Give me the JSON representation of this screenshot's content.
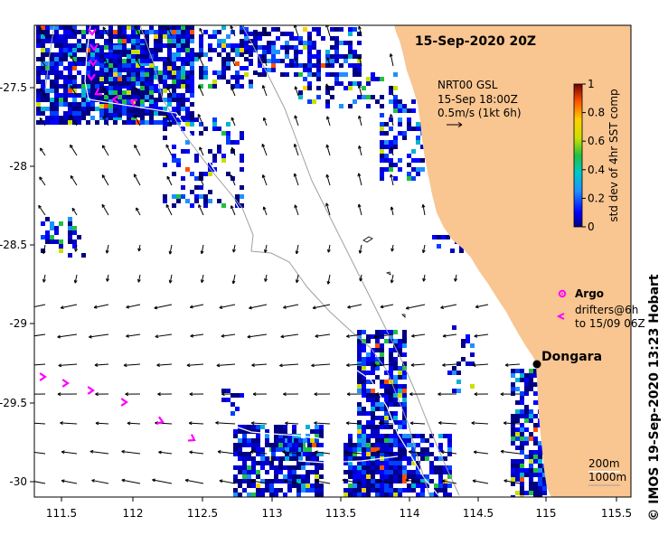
{
  "map": {
    "title": "15-Sep-2020 20Z",
    "product": {
      "line1": "NRT00 GSL",
      "line2": "15-Sep 18:00Z",
      "line3": "0.5m/s (1kt 6h)"
    },
    "place": "Dongara",
    "legend": {
      "argo": "Argo",
      "drifters1": "drifters@6h",
      "drifters2": "to 15/09 06Z"
    },
    "depth": {
      "c1": "200m",
      "c2": "1000m"
    },
    "credit": "© IMOS 19-Sep-2020 13:23 Hobart",
    "colorbar": {
      "label": "std dev of 4hr SST comp",
      "ticks": [
        "0",
        "0.2",
        "0.4",
        "0.6",
        "0.8",
        "1"
      ]
    },
    "x_ticks": [
      "111.5",
      "112",
      "112.5",
      "113",
      "113.5",
      "114",
      "114.5",
      "115",
      "115.5"
    ],
    "y_ticks": [
      "-27.5",
      "-28",
      "-28.5",
      "-29",
      "-29.5",
      "-30"
    ],
    "colors": {
      "land": "#f9c590",
      "drifter": "#ff00ff",
      "arrow": "#000000",
      "depth_200": "#ffffff",
      "depth_1000": "#a0a0a0"
    }
  }
}
